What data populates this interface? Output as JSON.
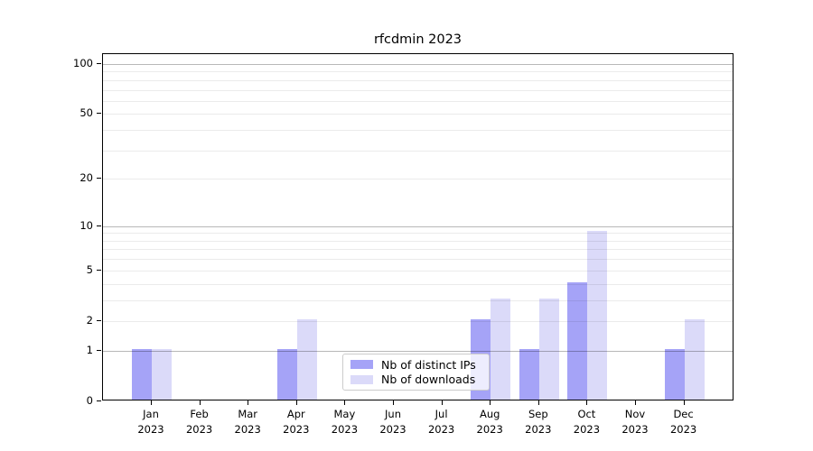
{
  "title": "rfcdmin 2023",
  "colors": {
    "ips_bar": "#a5a3f7",
    "downloads_bar": "#dbdaf9",
    "grid_minor": "rgba(0,0,0,0.08)",
    "grid_major": "rgba(0,0,0,0.28)",
    "spine": "#000000",
    "legend_border": "#cccccc",
    "text": "#000000"
  },
  "legend": {
    "items": [
      {
        "label": "Nb of distinct IPs",
        "color_key": "ips_bar"
      },
      {
        "label": "Nb of downloads",
        "color_key": "downloads_bar"
      }
    ]
  },
  "chart_data": {
    "type": "bar",
    "title": "rfcdmin 2023",
    "categories": [
      "Jan 2023",
      "Feb 2023",
      "Mar 2023",
      "Apr 2023",
      "May 2023",
      "Jun 2023",
      "Jul 2023",
      "Aug 2023",
      "Sep 2023",
      "Oct 2023",
      "Nov 2023",
      "Dec 2023"
    ],
    "series": [
      {
        "name": "Nb of distinct IPs",
        "values": [
          1,
          0,
          0,
          1,
          0,
          0,
          0,
          2,
          1,
          4,
          0,
          1
        ]
      },
      {
        "name": "Nb of downloads",
        "values": [
          1,
          0,
          0,
          2,
          0,
          0,
          0,
          3,
          3,
          9,
          0,
          2
        ]
      }
    ],
    "xlabel": "",
    "ylabel": "",
    "yscale": "log1p",
    "ylim": [
      0,
      115
    ],
    "y_tick_values": [
      0,
      1,
      2,
      5,
      10,
      20,
      50,
      100
    ],
    "y_tick_labels": [
      "0",
      "1",
      "2",
      "5",
      "10",
      "20",
      "50",
      "100"
    ],
    "grid_values": [
      1,
      2,
      3,
      4,
      5,
      6,
      7,
      8,
      9,
      10,
      20,
      30,
      40,
      50,
      60,
      70,
      80,
      90,
      100
    ],
    "grid_major_values": [
      1,
      10,
      100
    ],
    "grid": "on",
    "legend_position": "lower-center-inside"
  }
}
